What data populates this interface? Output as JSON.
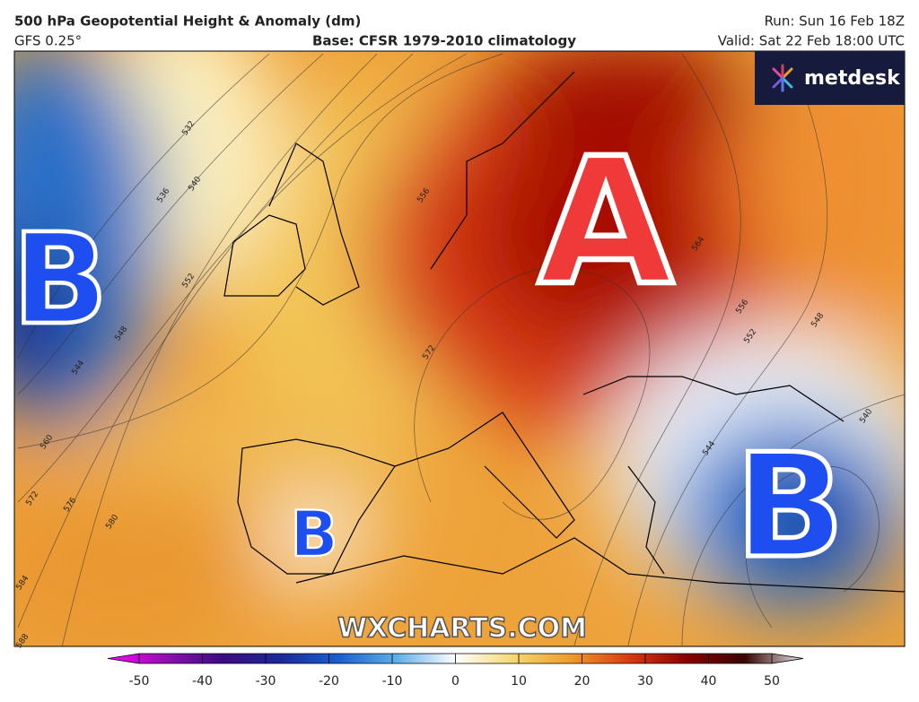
{
  "header": {
    "title": "500 hPa Geopotential Height & Anomaly (dm)",
    "model": "GFS 0.25°",
    "base": "Base: CFSR 1979-2010 climatology",
    "run": "Run: Sun 16 Feb 18Z",
    "valid": "Valid: Sat 22 Feb 18:00 UTC"
  },
  "logo": "metdesk",
  "watermark": "WXCHARTS.COM",
  "map": {
    "pressure_labels": [
      "B",
      "A",
      "B",
      "B"
    ],
    "contour_labels": [
      "532",
      "536",
      "540",
      "552",
      "548",
      "544",
      "556",
      "560",
      "572",
      "576",
      "580",
      "584",
      "588",
      "564",
      "572",
      "556",
      "552",
      "548",
      "540",
      "544"
    ]
  },
  "colorbar": {
    "ticks": [
      -50,
      -40,
      -30,
      -20,
      -10,
      0,
      10,
      20,
      30,
      40,
      50
    ],
    "colors": [
      "#ff00ff",
      "#9010b0",
      "#3a0a80",
      "#1a2a9a",
      "#1a60d0",
      "#60b0e8",
      "#ffffff",
      "#f5d870",
      "#ee9a2a",
      "#d83a12",
      "#8a0000",
      "#3a0505",
      "#e8e8e8"
    ]
  }
}
